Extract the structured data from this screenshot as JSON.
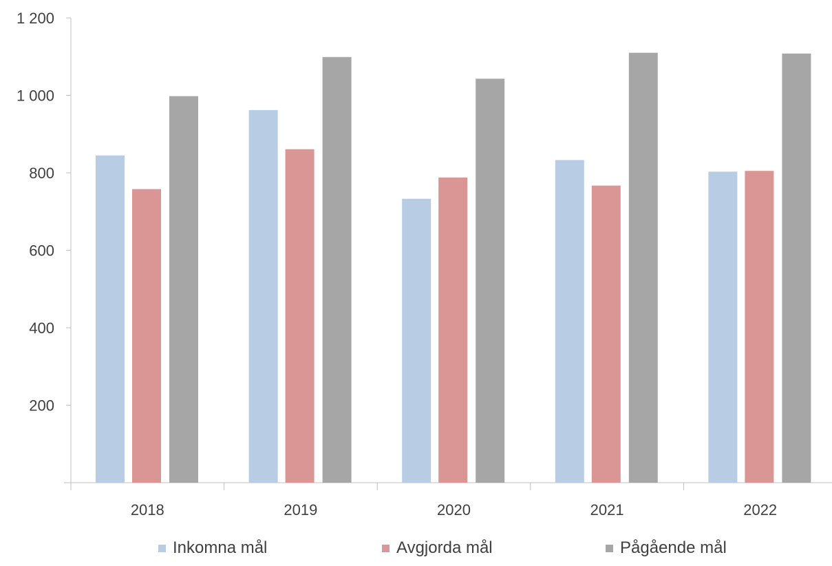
{
  "chart_data": {
    "type": "bar",
    "categories": [
      "2018",
      "2019",
      "2020",
      "2021",
      "2022"
    ],
    "series": [
      {
        "name": "Inkomna mål",
        "values": [
          845,
          962,
          733,
          833,
          803
        ],
        "color": "#b8cce4"
      },
      {
        "name": "Avgjorda mål",
        "values": [
          758,
          861,
          788,
          767,
          805
        ],
        "color": "#d99694"
      },
      {
        "name": "Pågående mål",
        "values": [
          998,
          1099,
          1043,
          1110,
          1108
        ],
        "color": "#a6a6a6"
      }
    ],
    "y_ticks": [
      {
        "value": 200,
        "label": "200"
      },
      {
        "value": 400,
        "label": "400"
      },
      {
        "value": 600,
        "label": "600"
      },
      {
        "value": 800,
        "label": "800"
      },
      {
        "value": 1000,
        "label": "1 000"
      },
      {
        "value": 1200,
        "label": "1 200"
      }
    ],
    "ylim": [
      0,
      1200
    ],
    "grid": false,
    "legend_position": "bottom"
  }
}
